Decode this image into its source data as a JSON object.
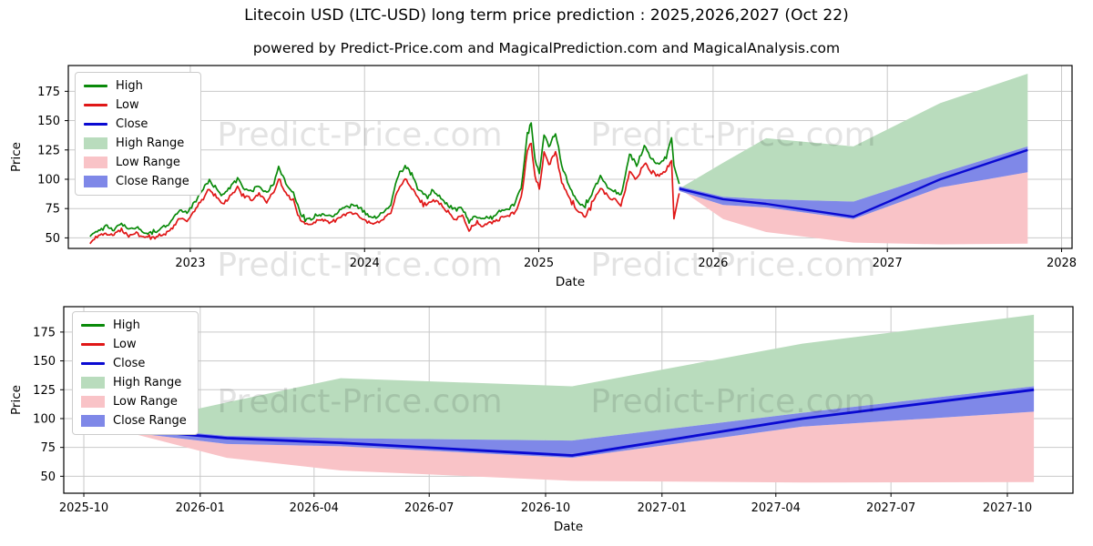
{
  "title": "Litecoin USD (LTC-USD) long term price prediction : 2025,2026,2027 (Oct 22)",
  "subtitle": "powered by Predict-Price.com and MagicalPrediction.com and MagicalAnalysis.com",
  "watermark": "Predict-Price.com",
  "colors": {
    "high_line": "#0a8a0a",
    "low_line": "#e01717",
    "close_line": "#0a0ad2",
    "high_range_fill": "#b9dcbd",
    "low_range_fill": "#f9c3c7",
    "close_range_fill": "#7f88e8",
    "grid": "#c9c9c9",
    "spine": "#000000"
  },
  "legend": [
    {
      "label": "High",
      "type": "line",
      "color": "#0a8a0a"
    },
    {
      "label": "Low",
      "type": "line",
      "color": "#e01717"
    },
    {
      "label": "Close",
      "type": "line",
      "color": "#0a0ad2"
    },
    {
      "label": "High Range",
      "type": "area",
      "color": "#b9dcbd"
    },
    {
      "label": "Low Range",
      "type": "area",
      "color": "#f9c3c7"
    },
    {
      "label": "Close Range",
      "type": "area",
      "color": "#7f88e8"
    }
  ],
  "chart_data": {
    "type": "line",
    "panels": [
      {
        "id": "history-and-forecast",
        "x_label": "Date",
        "y_label": "Price",
        "x_ticks": [
          "2023",
          "2024",
          "2025",
          "2026",
          "2027",
          "2028"
        ],
        "y_ticks": [
          50,
          75,
          100,
          125,
          150,
          175
        ],
        "x_range": [
          "2022-04-20",
          "2028-01-22"
        ],
        "y_range": [
          41,
          197
        ],
        "grid": true,
        "legend_position": "upper left"
      },
      {
        "id": "forecast-zoom",
        "x_label": "Date",
        "y_label": "Price",
        "x_ticks": [
          "2025-10",
          "2026-01",
          "2026-04",
          "2026-07",
          "2026-10",
          "2027-01",
          "2027-04",
          "2027-07",
          "2027-10"
        ],
        "y_ticks": [
          50,
          75,
          100,
          125,
          150,
          175
        ],
        "x_range": [
          "2025-09-15",
          "2027-11-26"
        ],
        "y_range": [
          35,
          197
        ],
        "grid": true,
        "legend_position": "upper left"
      }
    ],
    "history": {
      "dates": [
        "2022-06-05",
        "2022-06-20",
        "2022-07-08",
        "2022-07-25",
        "2022-08-10",
        "2022-08-25",
        "2022-09-10",
        "2022-09-25",
        "2022-10-10",
        "2022-10-25",
        "2022-11-10",
        "2022-11-25",
        "2022-12-10",
        "2022-12-25",
        "2023-01-10",
        "2023-01-25",
        "2023-02-10",
        "2023-02-25",
        "2023-03-10",
        "2023-03-25",
        "2023-04-10",
        "2023-04-25",
        "2023-05-10",
        "2023-05-25",
        "2023-06-10",
        "2023-06-25",
        "2023-07-05",
        "2023-07-20",
        "2023-08-05",
        "2023-08-20",
        "2023-09-05",
        "2023-09-20",
        "2023-10-10",
        "2023-10-25",
        "2023-11-10",
        "2023-11-25",
        "2023-12-10",
        "2023-12-25",
        "2024-01-10",
        "2024-01-25",
        "2024-02-10",
        "2024-02-25",
        "2024-03-10",
        "2024-03-27",
        "2024-04-10",
        "2024-04-25",
        "2024-05-10",
        "2024-05-25",
        "2024-06-10",
        "2024-06-25",
        "2024-07-10",
        "2024-07-25",
        "2024-08-08",
        "2024-08-22",
        "2024-09-08",
        "2024-09-22",
        "2024-10-10",
        "2024-10-25",
        "2024-11-10",
        "2024-11-25",
        "2024-12-08",
        "2024-12-16",
        "2024-12-24",
        "2025-01-02",
        "2025-01-12",
        "2025-01-22",
        "2025-02-05",
        "2025-02-18",
        "2025-03-05",
        "2025-03-20",
        "2025-04-08",
        "2025-04-22",
        "2025-05-10",
        "2025-05-25",
        "2025-06-10",
        "2025-06-22",
        "2025-07-10",
        "2025-07-25",
        "2025-08-10",
        "2025-08-25",
        "2025-09-10",
        "2025-09-25",
        "2025-10-06",
        "2025-10-11",
        "2025-10-22"
      ],
      "high": [
        52,
        56,
        61,
        57,
        62,
        57,
        59,
        55,
        54,
        56,
        60,
        65,
        74,
        71,
        80,
        90,
        99,
        92,
        86,
        93,
        100,
        92,
        90,
        95,
        88,
        96,
        110,
        97,
        88,
        70,
        66,
        68,
        70,
        68,
        74,
        76,
        78,
        74,
        69,
        67,
        72,
        78,
        100,
        112,
        104,
        90,
        86,
        90,
        84,
        78,
        74,
        75,
        64,
        68,
        66,
        68,
        72,
        74,
        78,
        92,
        140,
        148,
        118,
        105,
        138,
        128,
        140,
        112,
        95,
        82,
        76,
        88,
        102,
        94,
        90,
        86,
        122,
        112,
        128,
        118,
        112,
        120,
        135,
        112,
        96
      ],
      "low": [
        46,
        51,
        54,
        53,
        57,
        52,
        54,
        50,
        50,
        52,
        53,
        59,
        67,
        65,
        73,
        83,
        91,
        85,
        78,
        86,
        93,
        85,
        83,
        88,
        81,
        89,
        101,
        89,
        81,
        64,
        62,
        64,
        65,
        63,
        68,
        70,
        71,
        68,
        63,
        62,
        67,
        72,
        89,
        100,
        93,
        82,
        79,
        83,
        78,
        72,
        66,
        69,
        57,
        62,
        60,
        63,
        66,
        68,
        71,
        83,
        124,
        132,
        103,
        92,
        122,
        112,
        124,
        98,
        86,
        74,
        68,
        80,
        93,
        86,
        82,
        78,
        106,
        100,
        114,
        106,
        102,
        108,
        116,
        66,
        88
      ]
    },
    "forecast": {
      "dates": [
        "2025-10-22",
        "2026-01-22",
        "2026-04-22",
        "2026-10-22",
        "2027-04-22",
        "2027-10-22"
      ],
      "close": [
        92,
        83,
        79,
        68,
        100,
        125
      ],
      "high_range_top": [
        92,
        114,
        135,
        128,
        165,
        190
      ],
      "low_range_bottom": [
        92,
        66,
        55,
        46,
        44.5,
        45
      ],
      "close_range_top": [
        94,
        85,
        83,
        81,
        105,
        128
      ],
      "close_range_bottom": [
        90,
        78,
        76,
        66,
        93,
        106
      ]
    }
  }
}
